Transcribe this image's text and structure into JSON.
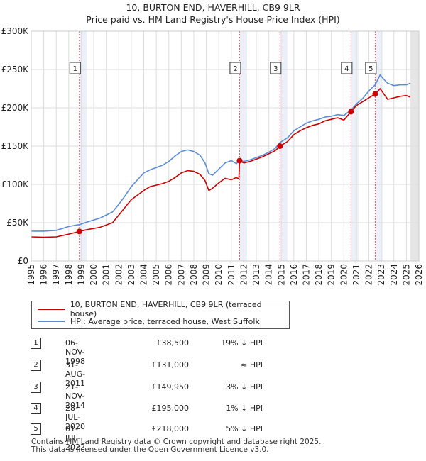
{
  "title_line1": "10, BURTON END, HAVERHILL, CB9 9LR",
  "title_line2": "Price paid vs. HM Land Registry's House Price Index (HPI)",
  "chart_data": {
    "type": "line",
    "x_range": [
      1995,
      2026
    ],
    "ylim": [
      0,
      300000
    ],
    "y_ticks": [
      0,
      50000,
      100000,
      150000,
      200000,
      250000,
      300000
    ],
    "y_tick_labels": [
      "£0",
      "£50K",
      "£100K",
      "£150K",
      "£200K",
      "£250K",
      "£300K"
    ],
    "x_ticks": [
      1995,
      1996,
      1997,
      1998,
      1999,
      2000,
      2001,
      2002,
      2003,
      2004,
      2005,
      2006,
      2007,
      2008,
      2009,
      2010,
      2011,
      2012,
      2013,
      2014,
      2015,
      2016,
      2017,
      2018,
      2019,
      2020,
      2021,
      2022,
      2023,
      2024,
      2025,
      2026
    ],
    "x_tick_labels": [
      "1995",
      "1996",
      "1997",
      "1998",
      "1999",
      "2000",
      "2001",
      "2002",
      "2003",
      "2004",
      "2005",
      "2006",
      "2007",
      "2008",
      "2009",
      "2010",
      "2011",
      "2012",
      "2013",
      "2014",
      "2015",
      "2016",
      "2017",
      "2018",
      "2019",
      "2020",
      "2021",
      "2022",
      "2023",
      "2024",
      "2025",
      "2026"
    ],
    "grid": true,
    "future_shading_from": 2025.3,
    "series": [
      {
        "name": "10, BURTON END, HAVERHILL, CB9 9LR (terraced house)",
        "color": "#cc0000",
        "points": [
          [
            1995.0,
            31500
          ],
          [
            1996.0,
            31000
          ],
          [
            1997.0,
            31500
          ],
          [
            1998.0,
            35000
          ],
          [
            1998.85,
            38500
          ],
          [
            1999.5,
            41000
          ],
          [
            2000.5,
            44000
          ],
          [
            2001.5,
            50000
          ],
          [
            2002.0,
            60000
          ],
          [
            2002.5,
            70000
          ],
          [
            2003.0,
            80000
          ],
          [
            2003.5,
            86000
          ],
          [
            2004.0,
            92000
          ],
          [
            2004.5,
            97000
          ],
          [
            2005.0,
            99000
          ],
          [
            2005.5,
            101000
          ],
          [
            2006.0,
            104000
          ],
          [
            2006.5,
            109000
          ],
          [
            2007.0,
            115000
          ],
          [
            2007.5,
            118000
          ],
          [
            2008.0,
            117000
          ],
          [
            2008.5,
            113000
          ],
          [
            2008.9,
            105000
          ],
          [
            2009.2,
            92000
          ],
          [
            2009.5,
            95000
          ],
          [
            2010.0,
            102000
          ],
          [
            2010.5,
            108000
          ],
          [
            2011.0,
            106000
          ],
          [
            2011.4,
            109000
          ],
          [
            2011.6,
            107000
          ],
          [
            2011.66,
            131000
          ],
          [
            2012.0,
            128000
          ],
          [
            2012.5,
            130000
          ],
          [
            2013.0,
            133000
          ],
          [
            2013.5,
            136000
          ],
          [
            2014.0,
            140000
          ],
          [
            2014.5,
            144000
          ],
          [
            2014.89,
            149950
          ],
          [
            2015.5,
            156000
          ],
          [
            2016.0,
            165000
          ],
          [
            2016.5,
            170000
          ],
          [
            2017.0,
            174000
          ],
          [
            2017.5,
            177000
          ],
          [
            2018.0,
            179000
          ],
          [
            2018.5,
            183000
          ],
          [
            2019.0,
            185000
          ],
          [
            2019.5,
            187000
          ],
          [
            2020.0,
            184000
          ],
          [
            2020.57,
            195000
          ],
          [
            2021.0,
            203000
          ],
          [
            2021.5,
            208000
          ],
          [
            2022.0,
            213000
          ],
          [
            2022.5,
            218000
          ],
          [
            2022.9,
            225000
          ],
          [
            2023.2,
            218000
          ],
          [
            2023.5,
            211000
          ],
          [
            2024.0,
            213000
          ],
          [
            2024.5,
            215000
          ],
          [
            2025.0,
            216000
          ],
          [
            2025.3,
            214000
          ]
        ]
      },
      {
        "name": "HPI: Average price, terraced house, West Suffolk",
        "color": "#5b8dd6",
        "points": [
          [
            1995.0,
            39000
          ],
          [
            1996.0,
            39000
          ],
          [
            1997.0,
            40000
          ],
          [
            1998.0,
            45000
          ],
          [
            1998.85,
            47500
          ],
          [
            1999.5,
            51000
          ],
          [
            2000.5,
            56000
          ],
          [
            2001.5,
            64000
          ],
          [
            2002.0,
            74000
          ],
          [
            2002.5,
            85000
          ],
          [
            2003.0,
            97000
          ],
          [
            2003.5,
            106000
          ],
          [
            2004.0,
            115000
          ],
          [
            2004.5,
            119000
          ],
          [
            2005.0,
            122000
          ],
          [
            2005.5,
            125000
          ],
          [
            2006.0,
            130000
          ],
          [
            2006.5,
            137000
          ],
          [
            2007.0,
            143000
          ],
          [
            2007.5,
            145000
          ],
          [
            2008.0,
            143000
          ],
          [
            2008.5,
            138000
          ],
          [
            2008.9,
            128000
          ],
          [
            2009.2,
            114000
          ],
          [
            2009.5,
            112000
          ],
          [
            2010.0,
            120000
          ],
          [
            2010.5,
            128000
          ],
          [
            2011.0,
            131000
          ],
          [
            2011.4,
            127000
          ],
          [
            2011.66,
            131000
          ],
          [
            2012.0,
            130000
          ],
          [
            2012.5,
            132000
          ],
          [
            2013.0,
            135000
          ],
          [
            2013.5,
            138000
          ],
          [
            2014.0,
            142000
          ],
          [
            2014.5,
            147000
          ],
          [
            2014.89,
            154500
          ],
          [
            2015.5,
            161000
          ],
          [
            2016.0,
            170000
          ],
          [
            2016.5,
            175000
          ],
          [
            2017.0,
            180000
          ],
          [
            2017.5,
            183000
          ],
          [
            2018.0,
            185000
          ],
          [
            2018.5,
            188000
          ],
          [
            2019.0,
            189000
          ],
          [
            2019.5,
            191000
          ],
          [
            2020.0,
            190000
          ],
          [
            2020.57,
            197000
          ],
          [
            2021.0,
            205000
          ],
          [
            2021.5,
            212000
          ],
          [
            2022.0,
            222000
          ],
          [
            2022.5,
            230000
          ],
          [
            2022.9,
            243000
          ],
          [
            2023.2,
            237000
          ],
          [
            2023.5,
            232000
          ],
          [
            2024.0,
            229000
          ],
          [
            2024.5,
            230000
          ],
          [
            2025.0,
            230000
          ],
          [
            2025.3,
            232000
          ]
        ]
      }
    ],
    "events": [
      {
        "num": "1",
        "x": 1998.85,
        "price": 38500
      },
      {
        "num": "2",
        "x": 2011.66,
        "price": 131000
      },
      {
        "num": "3",
        "x": 2014.89,
        "price": 149950
      },
      {
        "num": "4",
        "x": 2020.57,
        "price": 195000
      },
      {
        "num": "5",
        "x": 2022.5,
        "price": 218000
      }
    ]
  },
  "legend": {
    "items": [
      {
        "label": "10, BURTON END, HAVERHILL, CB9 9LR (terraced house)",
        "color": "#cc0000"
      },
      {
        "label": "HPI: Average price, terraced house, West Suffolk",
        "color": "#5b8dd6"
      }
    ]
  },
  "table": [
    {
      "num": "1",
      "date": "06-NOV-1998",
      "price": "£38,500",
      "hpi": "19% ↓ HPI"
    },
    {
      "num": "2",
      "date": "31-AUG-2011",
      "price": "£131,000",
      "hpi": "≈ HPI"
    },
    {
      "num": "3",
      "date": "21-NOV-2014",
      "price": "£149,950",
      "hpi": "3% ↓ HPI"
    },
    {
      "num": "4",
      "date": "28-JUL-2020",
      "price": "£195,000",
      "hpi": "1% ↓ HPI"
    },
    {
      "num": "5",
      "date": "01-JUL-2022",
      "price": "£218,000",
      "hpi": "5% ↓ HPI"
    }
  ],
  "footer_line1": "Contains HM Land Registry data © Crown copyright and database right 2025.",
  "footer_line2": "This data is licensed under the Open Government Licence v3.0."
}
